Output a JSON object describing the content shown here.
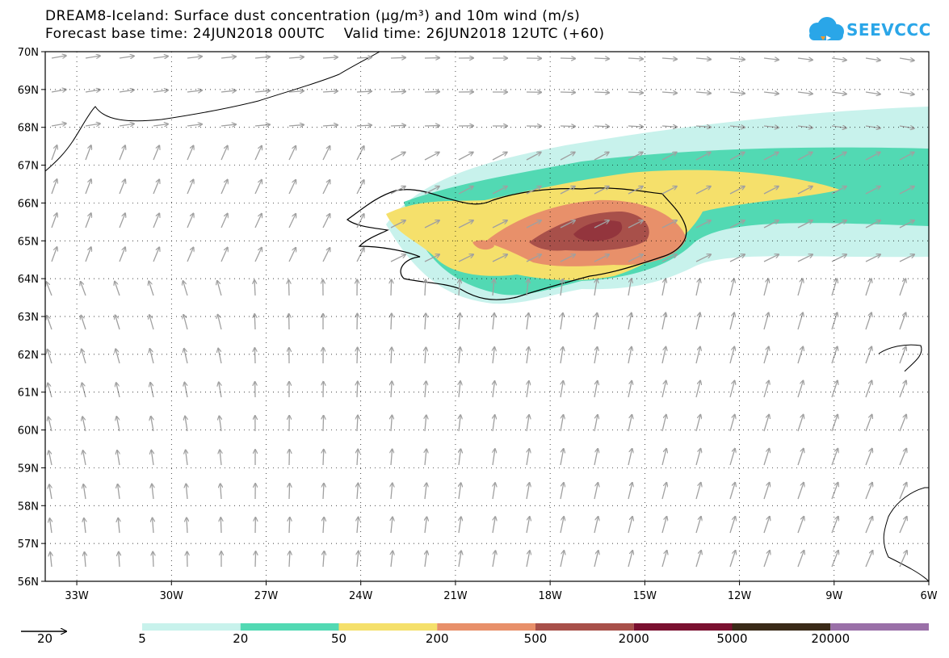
{
  "title": {
    "line1": "DREAM8-Iceland: Surface dust concentration (µg/m³) and 10m wind (m/s)",
    "line2": "Forecast base time: 24JUN2018 00UTC    Valid time: 26JUN2018 12UTC (+60)"
  },
  "logo": {
    "text": "SEEVCCC",
    "icon": "cloud-icon",
    "color": "#2aa6e8"
  },
  "map": {
    "lat_labels": [
      "70N",
      "69N",
      "68N",
      "67N",
      "66N",
      "65N",
      "64N",
      "63N",
      "62N",
      "61N",
      "60N",
      "59N",
      "58N",
      "57N",
      "56N"
    ],
    "lat_values": [
      70,
      69,
      68,
      67,
      66,
      65,
      64,
      63,
      62,
      61,
      60,
      59,
      58,
      57,
      56
    ],
    "lon_labels": [
      "33W",
      "30W",
      "27W",
      "24W",
      "21W",
      "18W",
      "15W",
      "12W",
      "9W",
      "6W"
    ],
    "lon_values": [
      -33,
      -30,
      -27,
      -24,
      -21,
      -18,
      -15,
      -12,
      -9,
      -6
    ],
    "extent": {
      "lon_min": -34,
      "lon_max": -6,
      "lat_min": 56,
      "lat_max": 70
    }
  },
  "wind_reference": {
    "value": "20",
    "icon": "arrow-right-icon"
  },
  "legend": {
    "labels": [
      "5",
      "20",
      "50",
      "200",
      "500",
      "2000",
      "5000",
      "20000"
    ],
    "colors": [
      "#c8f2ec",
      "#52d9b3",
      "#f5e06b",
      "#e8906a",
      "#a8504a",
      "#7a1030",
      "#3a2a18",
      "#9a70a8"
    ]
  }
}
